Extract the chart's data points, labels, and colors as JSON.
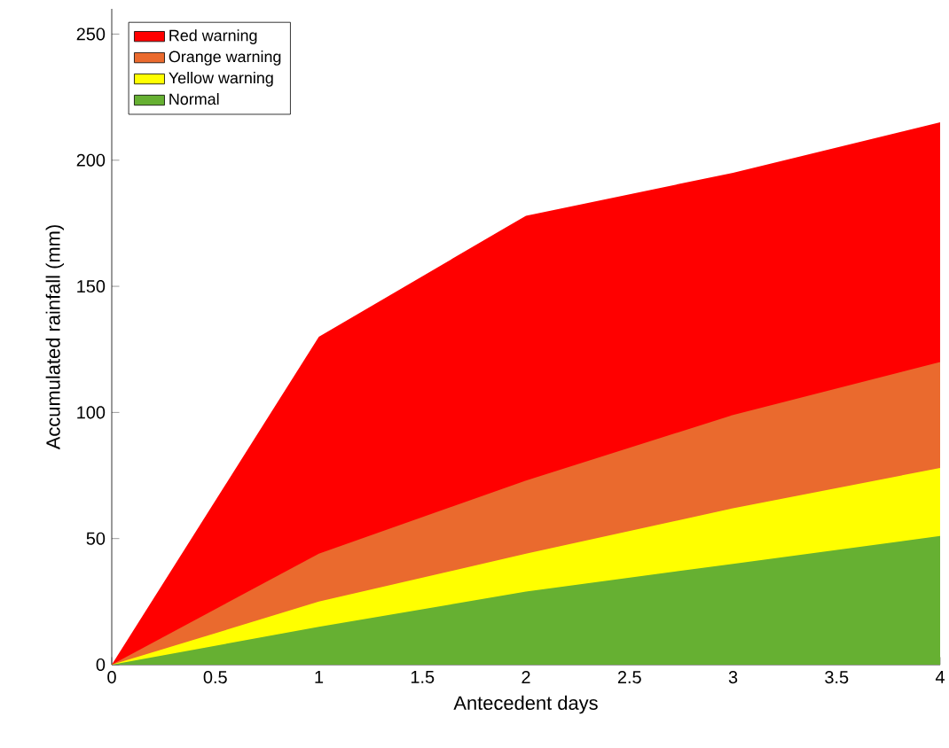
{
  "chart_data": {
    "type": "area",
    "xlabel": "Antecedent days",
    "ylabel": "Accumulated rainfall (mm)",
    "x": [
      0,
      1,
      2,
      3,
      4
    ],
    "series": [
      {
        "name": "Red warning",
        "color": "#ff0000",
        "values": [
          0,
          130,
          178,
          195,
          215
        ]
      },
      {
        "name": "Orange warning",
        "color": "#ea6a2e",
        "values": [
          0,
          44,
          73,
          99,
          120
        ]
      },
      {
        "name": "Yellow warning",
        "color": "#ffff00",
        "values": [
          0,
          25,
          44,
          62,
          78
        ]
      },
      {
        "name": "Normal",
        "color": "#66b032",
        "values": [
          0,
          15,
          29,
          40,
          51
        ]
      }
    ],
    "xlim": [
      0,
      4
    ],
    "ylim": [
      0,
      260
    ],
    "xticks": [
      0,
      0.5,
      1,
      1.5,
      2,
      2.5,
      3,
      3.5,
      4
    ],
    "yticks": [
      0,
      50,
      100,
      150,
      200,
      250
    ],
    "legend": "top left",
    "grid": false
  }
}
